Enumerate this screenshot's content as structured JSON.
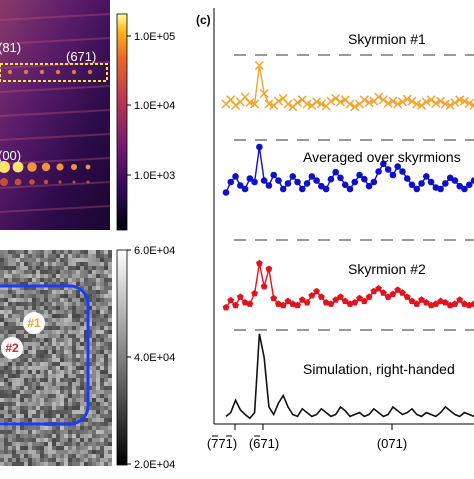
{
  "panel_top": {
    "labels": [
      "(81)",
      "(671)",
      "(00)"
    ],
    "colorbar": {
      "ticks": [
        "1.0E+05",
        "1.0E+04",
        "1.0E+03"
      ],
      "scale": "log",
      "colormap": "inferno"
    }
  },
  "panel_bottom": {
    "markers": [
      "#1",
      "#2"
    ],
    "marker_colors": {
      "#1": "#f2a531",
      "#2": "#d62027"
    },
    "outline_color": "#1a3cff",
    "colorbar": {
      "ticks": [
        "6.0E+04",
        "4.0E+04",
        "2.0E+04"
      ],
      "scale": "linear",
      "colormap": "gray"
    }
  },
  "panel_c": {
    "label": "(c)",
    "chart_data": {
      "type": "line",
      "xlabel": "",
      "ylabel": "",
      "x_ticks": [
        "(Š7Š1)",
        "(Š6·1)",
        "(071)"
      ],
      "x_tick_text": [
        "(771)",
        "(671)",
        "(071)"
      ],
      "grid": false,
      "series": [
        {
          "name": "Skyrmion #1",
          "color": "#f2a531",
          "marker": "x",
          "values": [
            0.3,
            0.36,
            0.28,
            0.33,
            0.4,
            0.32,
            0.3,
            0.85,
            0.45,
            0.3,
            0.28,
            0.34,
            0.38,
            0.3,
            0.26,
            0.32,
            0.36,
            0.3,
            0.28,
            0.33,
            0.3,
            0.27,
            0.34,
            0.38,
            0.33,
            0.36,
            0.3,
            0.26,
            0.3,
            0.36,
            0.32,
            0.34,
            0.4,
            0.36,
            0.31,
            0.34,
            0.3,
            0.33,
            0.37,
            0.34,
            0.3,
            0.28,
            0.33,
            0.36,
            0.31,
            0.34,
            0.3,
            0.28,
            0.32,
            0.36,
            0.34,
            0.31,
            0.28
          ]
        },
        {
          "name": "Averaged over skyrmions",
          "color": "#1010c8",
          "marker": "o",
          "values": [
            0.25,
            0.4,
            0.48,
            0.35,
            0.3,
            0.45,
            0.4,
            0.9,
            0.42,
            0.35,
            0.5,
            0.42,
            0.3,
            0.38,
            0.48,
            0.4,
            0.3,
            0.38,
            0.48,
            0.42,
            0.34,
            0.3,
            0.44,
            0.54,
            0.46,
            0.36,
            0.3,
            0.4,
            0.5,
            0.44,
            0.34,
            0.4,
            0.55,
            0.66,
            0.58,
            0.5,
            0.62,
            0.55,
            0.45,
            0.36,
            0.3,
            0.38,
            0.48,
            0.4,
            0.32,
            0.3,
            0.38,
            0.46,
            0.42,
            0.34,
            0.3,
            0.36,
            0.42
          ]
        },
        {
          "name": "Skyrmion #2",
          "color": "#e0141e",
          "marker": "p",
          "values": [
            0.25,
            0.35,
            0.28,
            0.4,
            0.32,
            0.3,
            0.45,
            0.88,
            0.55,
            0.8,
            0.38,
            0.3,
            0.28,
            0.34,
            0.3,
            0.28,
            0.36,
            0.32,
            0.42,
            0.48,
            0.4,
            0.32,
            0.3,
            0.36,
            0.4,
            0.34,
            0.3,
            0.32,
            0.38,
            0.34,
            0.4,
            0.48,
            0.52,
            0.46,
            0.4,
            0.44,
            0.5,
            0.46,
            0.4,
            0.34,
            0.3,
            0.36,
            0.32,
            0.28,
            0.3,
            0.34,
            0.32,
            0.28,
            0.3,
            0.36,
            0.3,
            0.28,
            0.3
          ]
        },
        {
          "name": "Simulation, right-handed",
          "color": "#111111",
          "marker": "none",
          "values": [
            0.08,
            0.12,
            0.25,
            0.15,
            0.1,
            0.06,
            0.12,
            0.95,
            0.7,
            0.18,
            0.1,
            0.22,
            0.3,
            0.18,
            0.1,
            0.08,
            0.16,
            0.12,
            0.08,
            0.1,
            0.16,
            0.12,
            0.08,
            0.1,
            0.18,
            0.14,
            0.08,
            0.1,
            0.12,
            0.08,
            0.1,
            0.16,
            0.12,
            0.08,
            0.1,
            0.18,
            0.14,
            0.1,
            0.12,
            0.16,
            0.1,
            0.08,
            0.12,
            0.1,
            0.08,
            0.12,
            0.18,
            0.14,
            0.1,
            0.08,
            0.12,
            0.1,
            0.08
          ]
        }
      ]
    }
  }
}
